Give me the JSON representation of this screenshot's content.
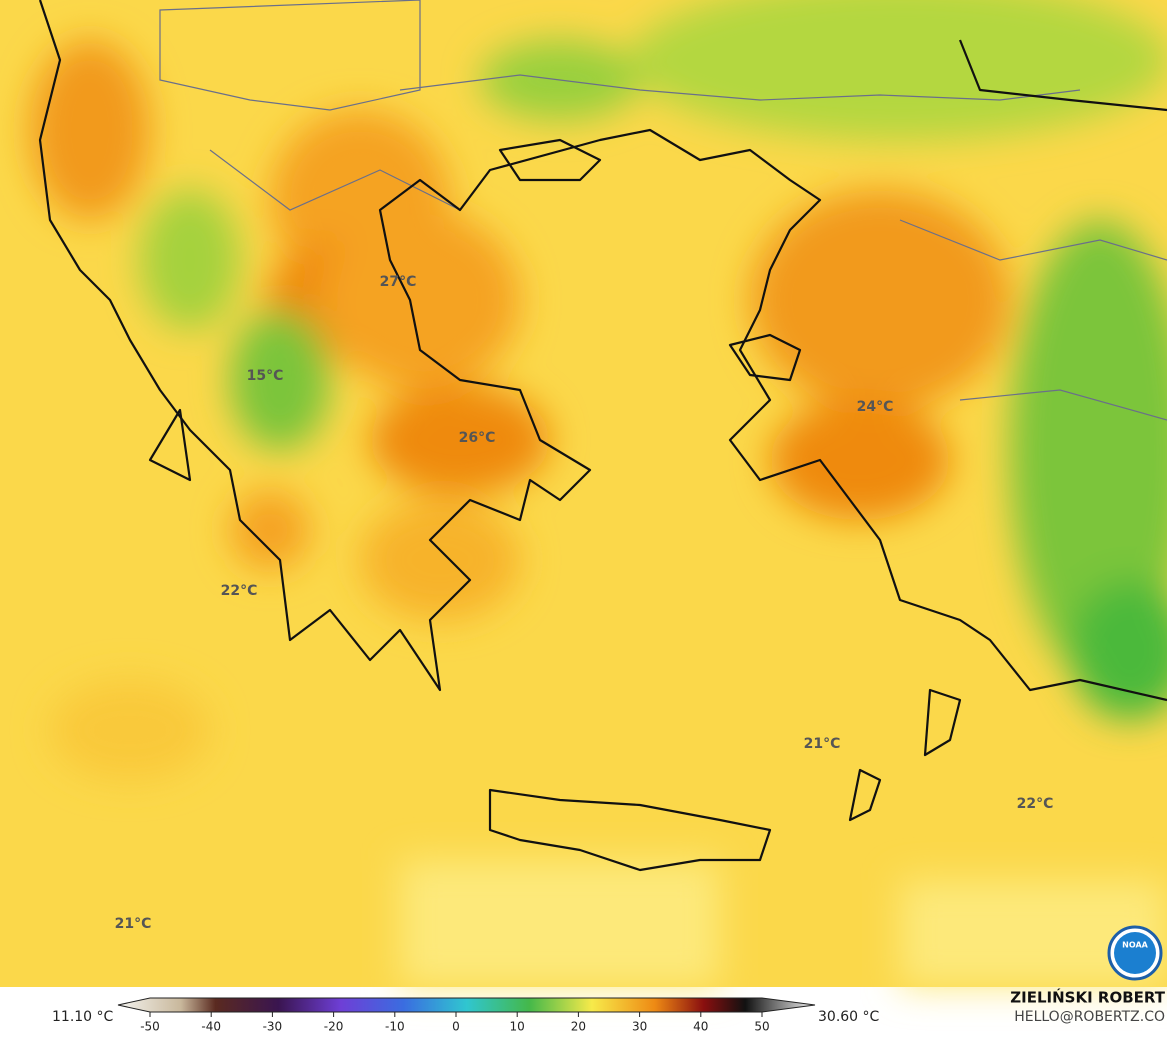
{
  "map_labels": [
    "27°C",
    "15°C",
    "26°C",
    "24°C",
    "22°C",
    "21°C",
    "22°C",
    "21°C"
  ],
  "colorbar": {
    "min_label": "11.10 °C",
    "max_label": "30.60 °C",
    "ticks": [
      -50,
      -40,
      -30,
      -20,
      -10,
      0,
      10,
      20,
      30,
      40,
      50
    ]
  },
  "credits": {
    "author": "ZIELIŃSKI ROBERT",
    "contact": "HELLO@ROBERTZ.CO",
    "logo": "NOAA"
  }
}
